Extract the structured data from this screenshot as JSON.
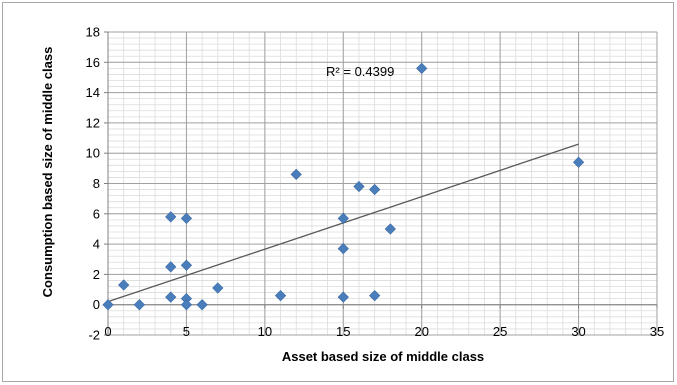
{
  "chart_data": {
    "type": "scatter",
    "xlabel": "Asset based size of middle class",
    "ylabel": "Consumption based size of middle class",
    "xlim": [
      0,
      35
    ],
    "ylim": [
      -2,
      18
    ],
    "x_major_step": 5,
    "x_minor_step": 1,
    "y_major_step": 2,
    "y_minor_step": 0.4,
    "x_ticks": [
      "0",
      "5",
      "10",
      "15",
      "20",
      "25",
      "30",
      "35"
    ],
    "y_ticks": [
      "-2",
      "0",
      "2",
      "4",
      "6",
      "8",
      "10",
      "12",
      "14",
      "16",
      "18"
    ],
    "grid": true,
    "marker": "diamond",
    "marker_color": "#4a7ebb",
    "trendline_color": "#595959",
    "series": [
      {
        "points": [
          [
            0,
            0
          ],
          [
            1,
            1.3
          ],
          [
            2,
            0
          ],
          [
            4,
            5.8
          ],
          [
            4,
            2.5
          ],
          [
            4,
            0.5
          ],
          [
            5,
            5.7
          ],
          [
            5,
            2.6
          ],
          [
            5,
            0.4
          ],
          [
            5,
            0
          ],
          [
            6,
            0
          ],
          [
            7,
            1.1
          ],
          [
            11,
            0.6
          ],
          [
            12,
            8.6
          ],
          [
            15,
            5.7
          ],
          [
            15,
            3.7
          ],
          [
            15,
            0.5
          ],
          [
            16,
            7.8
          ],
          [
            17,
            7.6
          ],
          [
            17,
            0.6
          ],
          [
            18,
            5.0
          ],
          [
            20,
            15.6
          ],
          [
            30,
            9.4
          ]
        ]
      }
    ],
    "trendline": {
      "type": "linear",
      "x": [
        0,
        30
      ],
      "y": [
        0.2,
        10.6
      ]
    },
    "annotation": {
      "text": "R² = 0.4399",
      "x": 13.9,
      "y": 15.1
    }
  }
}
